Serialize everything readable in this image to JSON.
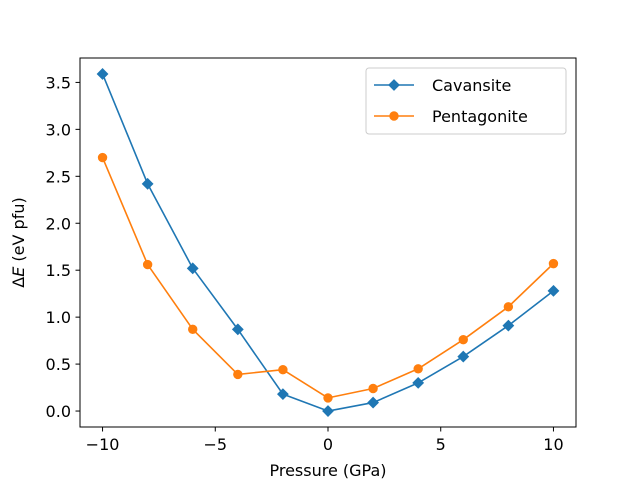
{
  "chart_data": {
    "type": "line",
    "title": "",
    "xlabel": "Pressure (GPa)",
    "ylabel_prefix": "Δ",
    "ylabel_var": "E",
    "ylabel_suffix": " (eV pfu)",
    "xlim": [
      -11,
      11
    ],
    "ylim": [
      -0.17,
      3.76
    ],
    "xticks": [
      -10,
      -5,
      0,
      5,
      10
    ],
    "xtick_labels": [
      "−10",
      "−5",
      "0",
      "5",
      "10"
    ],
    "yticks": [
      0.0,
      0.5,
      1.0,
      1.5,
      2.0,
      2.5,
      3.0,
      3.5
    ],
    "ytick_labels": [
      "0.0",
      "0.5",
      "1.0",
      "1.5",
      "2.0",
      "2.5",
      "3.0",
      "3.5"
    ],
    "grid": false,
    "legend_position": "top-right",
    "x": [
      -10,
      -8,
      -6,
      -4,
      -2,
      0,
      2,
      4,
      6,
      8,
      10
    ],
    "series": [
      {
        "name": "Cavansite",
        "color": "#1f77b4",
        "marker": "diamond",
        "values": [
          3.59,
          2.42,
          1.52,
          0.87,
          0.18,
          0.0,
          0.09,
          0.3,
          0.58,
          0.91,
          1.28
        ]
      },
      {
        "name": "Pentagonite",
        "color": "#ff7f0e",
        "marker": "circle",
        "values": [
          2.7,
          1.56,
          0.87,
          0.39,
          0.44,
          0.14,
          0.24,
          0.45,
          0.76,
          1.11,
          1.57
        ]
      }
    ]
  }
}
